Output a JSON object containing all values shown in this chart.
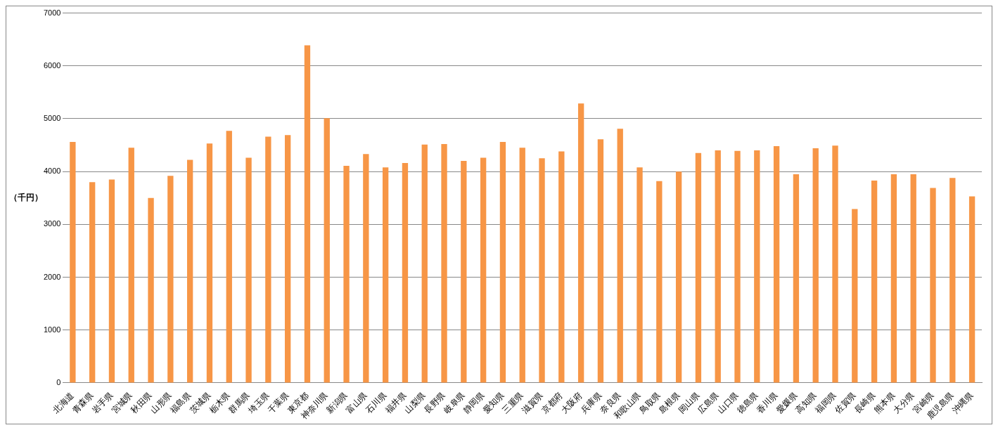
{
  "chart_data": {
    "type": "bar",
    "ylabel": "（千円）",
    "categories": [
      "北海道",
      "青森県",
      "岩手県",
      "宮城県",
      "秋田県",
      "山形県",
      "福島県",
      "茨城県",
      "栃木県",
      "群馬県",
      "埼玉県",
      "千葉県",
      "東京都",
      "神奈川県",
      "新潟県",
      "富山県",
      "石川県",
      "福井県",
      "山梨県",
      "長野県",
      "岐阜県",
      "静岡県",
      "愛知県",
      "三重県",
      "滋賀県",
      "京都府",
      "大阪府",
      "兵庫県",
      "奈良県",
      "和歌山県",
      "鳥取県",
      "島根県",
      "岡山県",
      "広島県",
      "山口県",
      "徳島県",
      "香川県",
      "愛媛県",
      "高知県",
      "福岡県",
      "佐賀県",
      "長崎県",
      "熊本県",
      "大分県",
      "宮崎県",
      "鹿児島県",
      "沖縄県"
    ],
    "values": [
      4560,
      3800,
      3850,
      4450,
      3500,
      3920,
      4220,
      4530,
      4770,
      4260,
      4660,
      4690,
      6390,
      5010,
      4110,
      4330,
      4080,
      4160,
      4510,
      4520,
      4200,
      4260,
      4560,
      4450,
      4250,
      4380,
      5290,
      4610,
      4810,
      4080,
      3820,
      4000,
      4350,
      4400,
      4390,
      4400,
      4480,
      3950,
      4440,
      4490,
      3290,
      3830,
      3950,
      3950,
      3690,
      3880,
      3530
    ],
    "color": "#f79646",
    "ylim": [
      0,
      7000
    ],
    "yticks": [
      0,
      1000,
      2000,
      3000,
      4000,
      5000,
      6000,
      7000
    ],
    "grid": "y",
    "legend": false
  }
}
